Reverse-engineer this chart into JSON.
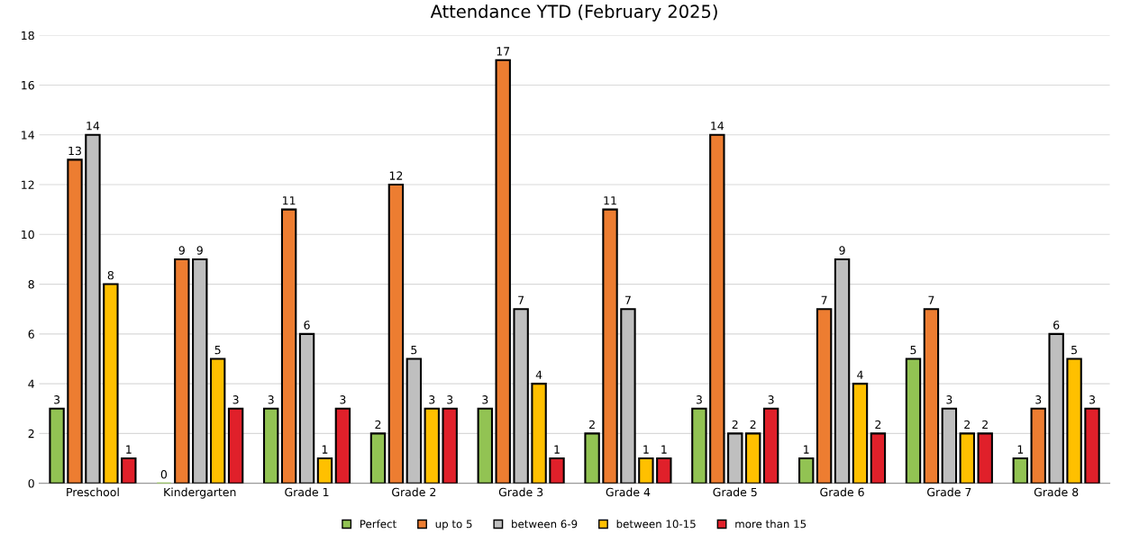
{
  "chart_data": {
    "type": "bar",
    "title": "Attendance YTD (February 2025)",
    "categories": [
      "Preschool",
      "Kindergarten",
      "Grade 1",
      "Grade 2",
      "Grade 3",
      "Grade 4",
      "Grade 5",
      "Grade 6",
      "Grade 7",
      "Grade 8"
    ],
    "series": [
      {
        "name": "Perfect",
        "color": "#92c353",
        "values": [
          3,
          0,
          3,
          2,
          3,
          2,
          3,
          1,
          5,
          1
        ]
      },
      {
        "name": "up to 5",
        "color": "#ed7d31",
        "values": [
          13,
          9,
          11,
          12,
          17,
          11,
          14,
          7,
          7,
          3
        ]
      },
      {
        "name": "between 6-9",
        "color": "#bfbfbf",
        "values": [
          14,
          9,
          6,
          5,
          7,
          7,
          2,
          9,
          3,
          6
        ]
      },
      {
        "name": "between 10-15",
        "color": "#ffc000",
        "values": [
          8,
          5,
          1,
          3,
          4,
          1,
          2,
          4,
          2,
          5
        ]
      },
      {
        "name": "more than 15",
        "color": "#e0202a",
        "values": [
          1,
          3,
          3,
          3,
          1,
          1,
          3,
          2,
          2,
          3
        ]
      }
    ],
    "ylim": [
      0,
      18
    ],
    "yticks": [
      0,
      2,
      4,
      6,
      8,
      10,
      12,
      14,
      16,
      18
    ],
    "grid": "y",
    "legend": "bottom",
    "data_labels": true
  }
}
